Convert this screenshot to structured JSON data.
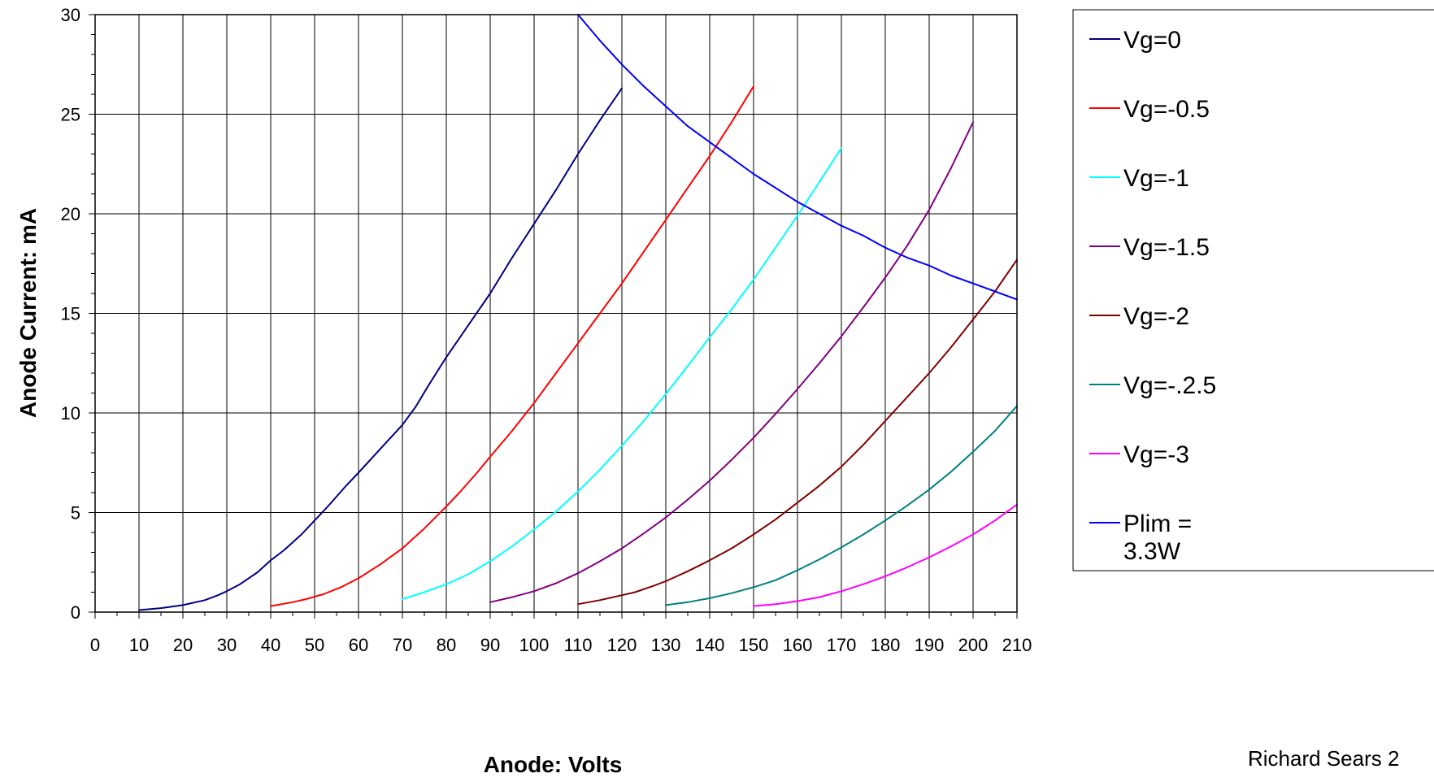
{
  "chart_data": {
    "type": "line",
    "xlabel": "Anode: Volts",
    "ylabel": "Anode Current: mA",
    "xlim": [
      0,
      210
    ],
    "ylim": [
      0,
      30
    ],
    "x_ticks": [
      0,
      10,
      20,
      30,
      40,
      50,
      60,
      70,
      80,
      90,
      100,
      110,
      120,
      130,
      140,
      150,
      160,
      170,
      180,
      190,
      200,
      210
    ],
    "y_ticks": [
      0,
      5,
      10,
      15,
      20,
      25,
      30
    ],
    "grid": true,
    "legend_position": "right",
    "credit": "Richard Sears 2",
    "series": [
      {
        "name": "Vg=0",
        "color": "#000080",
        "points": [
          [
            10,
            0.1
          ],
          [
            15,
            0.2
          ],
          [
            20,
            0.35
          ],
          [
            25,
            0.6
          ],
          [
            28,
            0.85
          ],
          [
            30,
            1.05
          ],
          [
            33,
            1.4
          ],
          [
            37,
            2.0
          ],
          [
            40,
            2.6
          ],
          [
            43,
            3.1
          ],
          [
            47,
            3.9
          ],
          [
            50,
            4.6
          ],
          [
            53,
            5.3
          ],
          [
            57,
            6.3
          ],
          [
            60,
            7.0
          ],
          [
            65,
            8.2
          ],
          [
            70,
            9.4
          ],
          [
            73,
            10.3
          ],
          [
            76,
            11.4
          ],
          [
            80,
            12.8
          ],
          [
            85,
            14.4
          ],
          [
            90,
            16.0
          ],
          [
            95,
            17.8
          ],
          [
            100,
            19.5
          ],
          [
            105,
            21.2
          ],
          [
            110,
            23.0
          ],
          [
            115,
            24.7
          ],
          [
            120,
            26.3
          ]
        ]
      },
      {
        "name": "Vg=-0.5",
        "color": "#ff0000",
        "points": [
          [
            40,
            0.3
          ],
          [
            45,
            0.5
          ],
          [
            48,
            0.65
          ],
          [
            52,
            0.9
          ],
          [
            56,
            1.25
          ],
          [
            60,
            1.7
          ],
          [
            65,
            2.4
          ],
          [
            70,
            3.2
          ],
          [
            75,
            4.2
          ],
          [
            80,
            5.3
          ],
          [
            83,
            6.0
          ],
          [
            87,
            7.0
          ],
          [
            90,
            7.8
          ],
          [
            95,
            9.1
          ],
          [
            100,
            10.5
          ],
          [
            105,
            12.0
          ],
          [
            110,
            13.5
          ],
          [
            115,
            15.0
          ],
          [
            120,
            16.5
          ],
          [
            125,
            18.1
          ],
          [
            130,
            19.7
          ],
          [
            135,
            21.3
          ],
          [
            140,
            22.9
          ],
          [
            145,
            24.6
          ],
          [
            150,
            26.4
          ]
        ]
      },
      {
        "name": "Vg=-1",
        "color": "#00ffff",
        "points": [
          [
            70,
            0.65
          ],
          [
            75,
            1.0
          ],
          [
            80,
            1.4
          ],
          [
            85,
            1.9
          ],
          [
            90,
            2.55
          ],
          [
            95,
            3.3
          ],
          [
            100,
            4.15
          ],
          [
            105,
            5.05
          ],
          [
            110,
            6.05
          ],
          [
            115,
            7.15
          ],
          [
            120,
            8.35
          ],
          [
            125,
            9.6
          ],
          [
            130,
            10.95
          ],
          [
            135,
            12.35
          ],
          [
            140,
            13.8
          ],
          [
            145,
            15.2
          ],
          [
            150,
            16.7
          ],
          [
            155,
            18.3
          ],
          [
            160,
            19.9
          ],
          [
            165,
            21.6
          ],
          [
            170,
            23.3
          ]
        ]
      },
      {
        "name": "Vg=-1.5",
        "color": "#800080",
        "points": [
          [
            90,
            0.5
          ],
          [
            95,
            0.75
          ],
          [
            100,
            1.05
          ],
          [
            105,
            1.45
          ],
          [
            110,
            1.95
          ],
          [
            115,
            2.55
          ],
          [
            120,
            3.2
          ],
          [
            125,
            3.95
          ],
          [
            130,
            4.75
          ],
          [
            135,
            5.65
          ],
          [
            140,
            6.6
          ],
          [
            145,
            7.65
          ],
          [
            150,
            8.75
          ],
          [
            155,
            9.95
          ],
          [
            160,
            11.2
          ],
          [
            165,
            12.5
          ],
          [
            170,
            13.85
          ],
          [
            175,
            15.3
          ],
          [
            180,
            16.8
          ],
          [
            185,
            18.4
          ],
          [
            190,
            20.2
          ],
          [
            195,
            22.3
          ],
          [
            200,
            24.6
          ]
        ]
      },
      {
        "name": "Vg=-2",
        "color": "#800000",
        "points": [
          [
            110,
            0.4
          ],
          [
            115,
            0.6
          ],
          [
            120,
            0.85
          ],
          [
            123,
            1.0
          ],
          [
            127,
            1.3
          ],
          [
            130,
            1.55
          ],
          [
            135,
            2.05
          ],
          [
            140,
            2.6
          ],
          [
            145,
            3.2
          ],
          [
            150,
            3.9
          ],
          [
            155,
            4.65
          ],
          [
            160,
            5.5
          ],
          [
            165,
            6.35
          ],
          [
            170,
            7.3
          ],
          [
            175,
            8.4
          ],
          [
            180,
            9.6
          ],
          [
            185,
            10.8
          ],
          [
            190,
            12.0
          ],
          [
            195,
            13.3
          ],
          [
            200,
            14.7
          ],
          [
            205,
            16.1
          ],
          [
            210,
            17.7
          ]
        ]
      },
      {
        "name": "Vg=-.2.5",
        "color": "#008080",
        "points": [
          [
            130,
            0.35
          ],
          [
            135,
            0.5
          ],
          [
            140,
            0.7
          ],
          [
            145,
            0.95
          ],
          [
            150,
            1.25
          ],
          [
            155,
            1.6
          ],
          [
            160,
            2.1
          ],
          [
            165,
            2.65
          ],
          [
            170,
            3.25
          ],
          [
            175,
            3.9
          ],
          [
            180,
            4.6
          ],
          [
            185,
            5.35
          ],
          [
            190,
            6.15
          ],
          [
            195,
            7.05
          ],
          [
            200,
            8.05
          ],
          [
            205,
            9.1
          ],
          [
            210,
            10.35
          ]
        ]
      },
      {
        "name": "Vg=-3",
        "color": "#ff00ff",
        "points": [
          [
            150,
            0.3
          ],
          [
            155,
            0.4
          ],
          [
            160,
            0.55
          ],
          [
            165,
            0.75
          ],
          [
            170,
            1.05
          ],
          [
            175,
            1.4
          ],
          [
            180,
            1.8
          ],
          [
            185,
            2.25
          ],
          [
            190,
            2.75
          ],
          [
            195,
            3.3
          ],
          [
            200,
            3.9
          ],
          [
            205,
            4.6
          ],
          [
            210,
            5.4
          ]
        ]
      },
      {
        "name": "Plim = 3.3W",
        "color": "#0000ff",
        "points": [
          [
            110,
            30.0
          ],
          [
            115,
            28.7
          ],
          [
            120,
            27.5
          ],
          [
            125,
            26.4
          ],
          [
            130,
            25.4
          ],
          [
            135,
            24.4
          ],
          [
            140,
            23.6
          ],
          [
            145,
            22.8
          ],
          [
            150,
            22.0
          ],
          [
            155,
            21.3
          ],
          [
            160,
            20.6
          ],
          [
            165,
            20.0
          ],
          [
            170,
            19.4
          ],
          [
            175,
            18.9
          ],
          [
            180,
            18.3
          ],
          [
            185,
            17.8
          ],
          [
            190,
            17.4
          ],
          [
            195,
            16.9
          ],
          [
            200,
            16.5
          ],
          [
            205,
            16.1
          ],
          [
            210,
            15.7
          ]
        ]
      }
    ]
  }
}
